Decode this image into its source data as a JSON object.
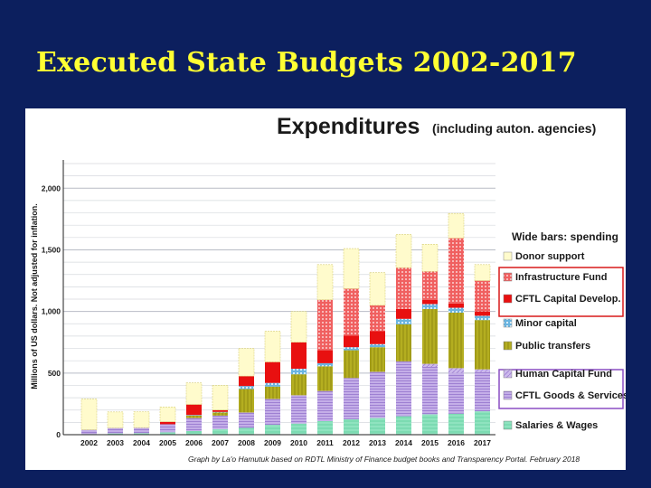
{
  "slide": {
    "title": "Executed State Budgets 2002-2017"
  },
  "colors": {
    "background": "#0c1f5e",
    "title": "#ffff33",
    "donor": "#fffbcc",
    "infrastructure": "#f06060",
    "cftl_capital": "#e81010",
    "minor_capital": "#5aaadc",
    "public_transfers": "#a5a01a",
    "human_capital": "#cdbaec",
    "goods_services": "#a58cd0",
    "salaries": "#7fdcb3",
    "red_box": "#d81a1a",
    "purple_box": "#8a4ec4"
  },
  "chart_data": {
    "type": "bar",
    "title": "Expenditures",
    "subtitle": "(including auton. agencies)",
    "ylabel": "Millions of US dollars.   Not adjusted for inflation.",
    "ylim": [
      0,
      2200
    ],
    "yticks": [
      0,
      500,
      1000,
      1500,
      2000
    ],
    "ytick_labels": [
      "0",
      "500",
      "1,000",
      "1,500",
      "2,000"
    ],
    "categories": [
      "2002",
      "2003",
      "2004",
      "2005",
      "2006",
      "2007",
      "2008",
      "2009",
      "2010",
      "2011",
      "2012",
      "2013",
      "2014",
      "2015",
      "2016",
      "2017"
    ],
    "series": [
      {
        "key": "salaries",
        "name": "Salaries & Wages",
        "values": [
          5,
          10,
          12,
          20,
          30,
          45,
          55,
          80,
          90,
          110,
          125,
          135,
          150,
          165,
          170,
          190
        ]
      },
      {
        "key": "goods_services",
        "name": "CFTL Goods & Services",
        "values": [
          35,
          45,
          45,
          65,
          105,
          110,
          125,
          210,
          230,
          245,
          335,
          375,
          445,
          385,
          330,
          320
        ]
      },
      {
        "key": "human_capital",
        "name": "Human Capital Fund",
        "values": [
          0,
          0,
          0,
          0,
          0,
          0,
          0,
          0,
          0,
          0,
          0,
          0,
          0,
          25,
          40,
          20
        ]
      },
      {
        "key": "public_transfers",
        "name": "Public transfers",
        "values": [
          0,
          0,
          0,
          0,
          20,
          25,
          190,
          100,
          170,
          200,
          225,
          200,
          300,
          445,
          450,
          400
        ]
      },
      {
        "key": "minor_capital",
        "name": "Minor capital",
        "values": [
          0,
          0,
          0,
          0,
          5,
          5,
          25,
          30,
          45,
          25,
          25,
          25,
          45,
          40,
          40,
          35
        ]
      },
      {
        "key": "cftl_capital",
        "name": "CFTL Capital Develop.",
        "values": [
          0,
          0,
          0,
          20,
          85,
          15,
          80,
          170,
          215,
          105,
          95,
          105,
          80,
          35,
          35,
          35
        ]
      },
      {
        "key": "infrastructure",
        "name": "Infrastructure Fund",
        "values": [
          0,
          0,
          0,
          0,
          0,
          0,
          0,
          0,
          0,
          410,
          380,
          210,
          335,
          230,
          530,
          250
        ]
      },
      {
        "key": "donor",
        "name": "Donor support",
        "values": [
          250,
          130,
          130,
          120,
          175,
          200,
          225,
          250,
          250,
          285,
          325,
          265,
          270,
          220,
          200,
          130
        ]
      }
    ],
    "legend": {
      "heading": "Wide bars: spending",
      "entries": [
        "Donor support",
        "Infrastructure Fund",
        "CFTL Capital Develop.",
        "Minor capital",
        "Public transfers",
        "Human Capital Fund",
        "CFTL Goods & Services",
        "Salaries & Wages"
      ],
      "placement": "right"
    },
    "credit": "Graph by La'o Hamutuk based on RDTL Ministry of Finance budget books and Transparency Portal.  February 2018"
  }
}
